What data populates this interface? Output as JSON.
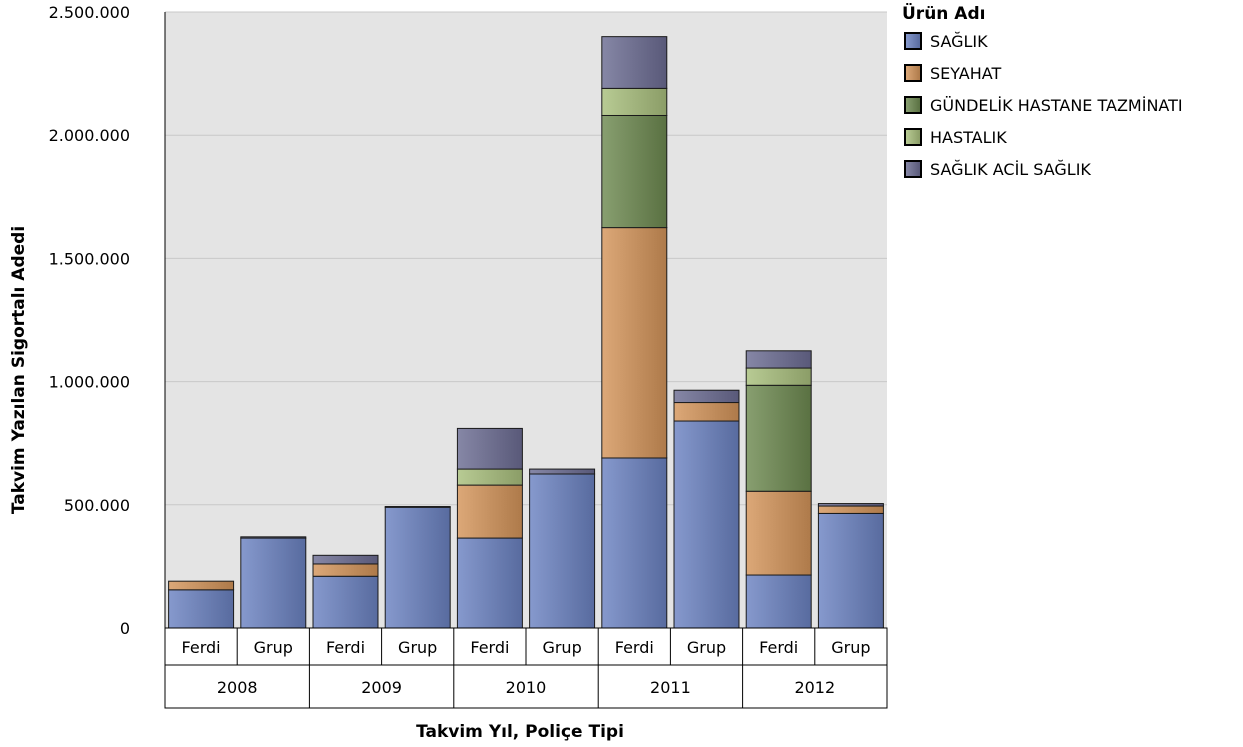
{
  "chart_data": {
    "type": "bar",
    "stacked": true,
    "title": "",
    "xlabel": "Takvim Yıl, Poliçe Tipi",
    "ylabel": "Takvim Yazılan Sigortalı Adedi",
    "ylim": [
      0,
      2500000
    ],
    "yticks": [
      0,
      500000,
      1000000,
      1500000,
      2000000,
      2500000
    ],
    "ytick_labels": [
      "0",
      "500.000",
      "1.000.000",
      "1.500.000",
      "2.000.000",
      "2.500.000"
    ],
    "grid": true,
    "legend_title": "Ürün Adı",
    "legend_position": "top-right",
    "years": [
      "2008",
      "2009",
      "2010",
      "2011",
      "2012"
    ],
    "categories": [
      "Ferdi",
      "Grup",
      "Ferdi",
      "Grup",
      "Ferdi",
      "Grup",
      "Ferdi",
      "Grup",
      "Ferdi",
      "Grup"
    ],
    "series": [
      {
        "name": "SAĞLIK",
        "color": "#6b82c2",
        "values": [
          155000,
          365000,
          210000,
          490000,
          365000,
          625000,
          690000,
          840000,
          215000,
          465000
        ]
      },
      {
        "name": "SEYAHAT",
        "color": "#d4955a",
        "values": [
          35000,
          0,
          50000,
          0,
          215000,
          0,
          935000,
          75000,
          340000,
          30000
        ]
      },
      {
        "name": "GÜNDELİK HASTANE TAZMİNATI",
        "color": "#6e8a50",
        "values": [
          0,
          0,
          0,
          0,
          0,
          0,
          455000,
          0,
          430000,
          0
        ]
      },
      {
        "name": "HASTALIK",
        "color": "#a9c07d",
        "values": [
          0,
          0,
          0,
          0,
          65000,
          0,
          110000,
          0,
          70000,
          0
        ]
      },
      {
        "name": "SAĞLIK ACİL SAĞLIK",
        "color": "#6c6d93",
        "values": [
          0,
          5000,
          35000,
          3000,
          165000,
          20000,
          210000,
          50000,
          70000,
          10000
        ]
      }
    ]
  }
}
